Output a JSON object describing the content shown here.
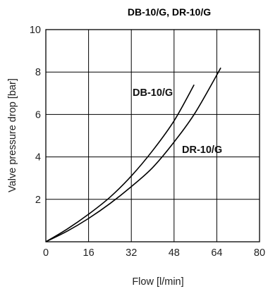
{
  "chart_data": {
    "type": "line",
    "title": "DB-10/G, DR-10/G",
    "xlabel": "Flow [l/min]",
    "ylabel": "Valve pressure drop [bar]",
    "xlim": [
      0,
      80
    ],
    "ylim": [
      0,
      10
    ],
    "x_ticks": [
      "0",
      "16",
      "32",
      "48",
      "64",
      "80"
    ],
    "y_ticks": [
      "2",
      "4",
      "6",
      "8",
      "10"
    ],
    "grid": true,
    "series": [
      {
        "name": "DB-10/G",
        "x": [
          0,
          8,
          16,
          24,
          32,
          40,
          48,
          55.5
        ],
        "y": [
          0,
          0.6,
          1.3,
          2.1,
          3.1,
          4.3,
          5.7,
          7.4
        ]
      },
      {
        "name": "DR-10/G",
        "x": [
          0,
          8,
          16,
          24,
          32,
          40,
          48,
          56,
          65.5
        ],
        "y": [
          0,
          0.5,
          1.1,
          1.8,
          2.6,
          3.5,
          4.7,
          6.1,
          8.2
        ]
      }
    ]
  }
}
